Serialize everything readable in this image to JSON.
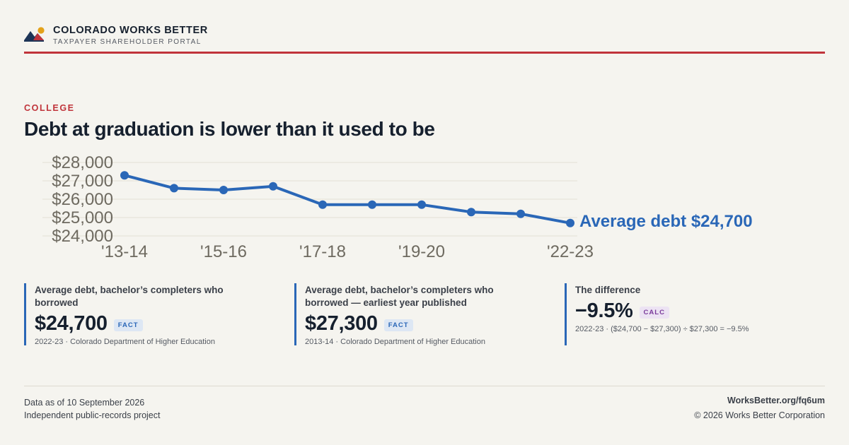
{
  "brand": {
    "title": "COLORADO WORKS BETTER",
    "subtitle": "TAXPAYER SHAREHOLDER PORTAL",
    "logo_icon": "mountain-sun-icon",
    "accent_color": "#c0343b"
  },
  "eyebrow": "COLLEGE",
  "headline": "Debt at graduation is lower than it used to be",
  "chart_data": {
    "type": "line",
    "title": "",
    "xlabel": "",
    "ylabel": "",
    "categories": [
      "'13-14",
      "'14-15",
      "'15-16",
      "'16-17",
      "'17-18",
      "'18-19",
      "'19-20",
      "'20-21",
      "'21-22",
      "'22-23"
    ],
    "x_tick_labels": [
      "'13-14",
      "'15-16",
      "'17-18",
      "'19-20",
      "'22-23"
    ],
    "y_ticks": [
      "$28,000",
      "$27,000",
      "$26,000",
      "$25,000",
      "$24,000"
    ],
    "ylim": [
      24000,
      28000
    ],
    "grid": true,
    "series": [
      {
        "values": [
          27300,
          26600,
          26500,
          26700,
          25700,
          25700,
          25700,
          25300,
          25200,
          24700
        ],
        "color": "#2a67b7"
      }
    ],
    "end_label": "Average debt $24,700"
  },
  "cards": [
    {
      "label": "Average debt, bachelor’s completers who borrowed",
      "value": "$24,700",
      "badge": "FACT",
      "note": "2022-23 · Colorado Department of Higher Education"
    },
    {
      "label": "Average debt, bachelor’s completers who borrowed — earliest year published",
      "value": "$27,300",
      "badge": "FACT",
      "note": "2013-14 · Colorado Department of Higher Education"
    },
    {
      "label": "The difference",
      "value": "−9.5%",
      "badge": "CALC",
      "note": "2022-23 · ($24,700 − $27,300) ÷ $27,300 = −9.5%"
    }
  ],
  "footer": {
    "as_of": "Data as of 10 September 2026",
    "project": "Independent public-records project",
    "link": "WorksBetter.org/fq6um",
    "copyright": "© 2026 Works Better Corporation"
  }
}
